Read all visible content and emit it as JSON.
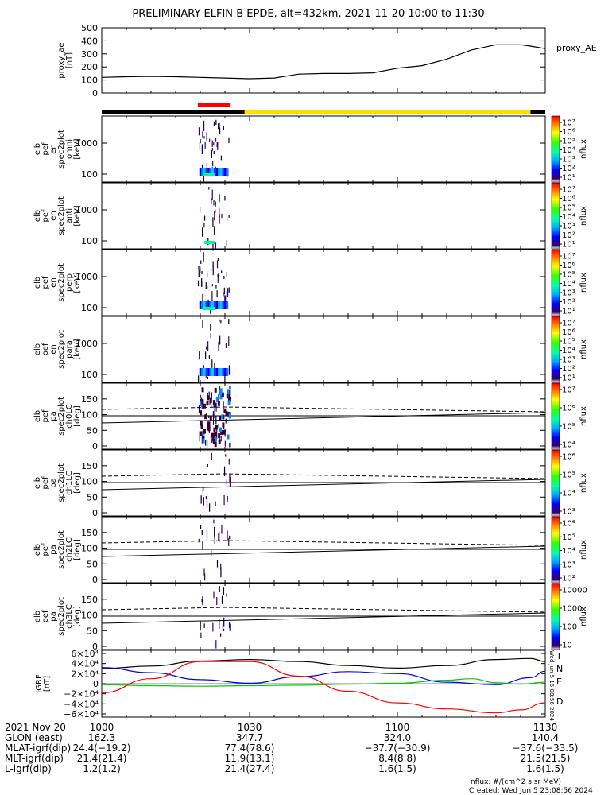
{
  "title": "PRELIMINARY ELFIN-B EPDE, alt=432km, 2021-11-20 10:00 to 11:30",
  "colors": {
    "ae": "#000000",
    "T": "#000000",
    "N": "#0000ff",
    "E": "#00cc00",
    "D": "#ff0000",
    "bar_black": "#000000",
    "bar_yellow": "#ffdd00",
    "bar_red": "#ff0000"
  },
  "chart_data": [
    {
      "type": "line",
      "panel": "proxy_ae",
      "ylabel": [
        "proxy_ae",
        "[nT]"
      ],
      "legend": "proxy_AE",
      "x_minutes": [
        0,
        5,
        10,
        15,
        20,
        25,
        30,
        35,
        40,
        45,
        50,
        55,
        60,
        65,
        70,
        75,
        80,
        85,
        87,
        90
      ],
      "y": [
        120,
        125,
        128,
        125,
        120,
        115,
        110,
        115,
        145,
        150,
        150,
        155,
        190,
        210,
        260,
        330,
        370,
        370,
        360,
        340
      ],
      "ylim": [
        0,
        500
      ],
      "yticks": [
        "500",
        "400",
        "300",
        "200",
        "100",
        "0"
      ]
    },
    {
      "type": "table",
      "panel": "status_bar",
      "segments": [
        {
          "from": 0,
          "to": 29,
          "color": "black"
        },
        {
          "from": 29,
          "to": 87,
          "color": "yellow"
        },
        {
          "from": 87,
          "to": 90,
          "color": "black"
        }
      ],
      "marker": {
        "from": 19.5,
        "to": 26,
        "color": "red"
      }
    },
    {
      "type": "heatmap",
      "panel": "omni",
      "ylabel": [
        "elb",
        "pef",
        "en",
        "spec2plot",
        "omni",
        "[keV]"
      ],
      "yticks": [
        "1000",
        "100"
      ],
      "cbar_label": "nflux",
      "cbar_ticks": [
        "10⁷",
        "10⁶",
        "10⁵",
        "10⁴",
        "10³",
        "10²",
        "10¹"
      ]
    },
    {
      "type": "heatmap",
      "panel": "anti",
      "ylabel": [
        "elb",
        "pef",
        "en",
        "spec2plot",
        "anti",
        "[keV]"
      ],
      "yticks": [
        "1000",
        "100"
      ],
      "cbar_label": "nflux",
      "cbar_ticks": [
        "10⁷",
        "10⁶",
        "10⁵",
        "10⁴",
        "10³",
        "10²",
        "10¹"
      ]
    },
    {
      "type": "heatmap",
      "panel": "perp",
      "ylabel": [
        "elb",
        "pef",
        "en",
        "spec2plot",
        "perp",
        "[keV]"
      ],
      "yticks": [
        "1000",
        "100"
      ],
      "cbar_label": "nflux",
      "cbar_ticks": [
        "10⁷",
        "10⁶",
        "10⁵",
        "10⁴",
        "10³",
        "10²",
        "10¹"
      ]
    },
    {
      "type": "heatmap",
      "panel": "para",
      "ylabel": [
        "elb",
        "pef",
        "en",
        "spec2plot",
        "para",
        "[keV]"
      ],
      "yticks": [
        "1000",
        "100"
      ],
      "cbar_label": "nflux",
      "cbar_ticks": [
        "10⁷",
        "10⁶",
        "10⁵",
        "10⁴",
        "10³",
        "10²",
        "10¹"
      ]
    },
    {
      "type": "heatmap",
      "panel": "ch0LC",
      "ylabel": [
        "elb",
        "pef",
        "pa",
        "spec2plot",
        "ch0LC",
        "[deg]"
      ],
      "yticks": [
        "150",
        "100",
        "50",
        "0"
      ],
      "cbar_label": "nflux",
      "cbar_ticks": [
        "10⁷",
        "10⁶",
        "10⁵",
        "10⁴"
      ]
    },
    {
      "type": "heatmap",
      "panel": "ch1LC",
      "ylabel": [
        "elb",
        "pef",
        "pa",
        "spec2plot",
        "ch1LC",
        "[deg]"
      ],
      "yticks": [
        "150",
        "100",
        "50",
        "0"
      ],
      "cbar_label": "nflux",
      "cbar_ticks": [
        "10⁶",
        "10⁵",
        "10⁴",
        "10³"
      ]
    },
    {
      "type": "heatmap",
      "panel": "ch2LC",
      "ylabel": [
        "elb",
        "pef",
        "pa",
        "spec2plot",
        "ch2LC",
        "[deg]"
      ],
      "yticks": [
        "150",
        "100",
        "50",
        "0"
      ],
      "cbar_label": "nflux",
      "cbar_ticks": [
        "10⁶",
        "10⁵",
        "10⁴",
        "10³",
        "10²"
      ]
    },
    {
      "type": "heatmap",
      "panel": "ch3LC",
      "ylabel": [
        "elb",
        "pef",
        "pa",
        "spec2plot",
        "ch3LC",
        "[deg]"
      ],
      "yticks": [
        "150",
        "100",
        "50",
        "0"
      ],
      "cbar_label": "nflux",
      "cbar_ticks": [
        "10000",
        "1000",
        "100",
        "10"
      ]
    },
    {
      "type": "line",
      "panel": "igrf",
      "ylabel": [
        "IGRF",
        "[nT]"
      ],
      "yticks": [
        "6×10⁴",
        "4×10⁴",
        "2×10⁴",
        "0",
        "−2×10⁴",
        "−4×10⁴",
        "−6×10⁴"
      ],
      "ylim": [
        -60000,
        60000
      ],
      "series": [
        {
          "name": "T",
          "x": [
            0,
            10,
            20,
            30,
            40,
            50,
            60,
            70,
            80,
            87,
            90
          ],
          "y": [
            30000,
            35000,
            45000,
            48000,
            44000,
            36000,
            31000,
            36000,
            48000,
            50000,
            44000
          ]
        },
        {
          "name": "N",
          "x": [
            0,
            10,
            20,
            30,
            40,
            50,
            60,
            70,
            80,
            87,
            90
          ],
          "y": [
            32000,
            22000,
            8000,
            1000,
            14000,
            24000,
            20000,
            3000,
            -2000,
            12000,
            25000
          ]
        },
        {
          "name": "E",
          "x": [
            0,
            10,
            20,
            30,
            40,
            50,
            60,
            70,
            75,
            80,
            85,
            90
          ],
          "y": [
            -2000,
            -4000,
            -5000,
            -4000,
            -3000,
            -1000,
            1000,
            7000,
            10000,
            2000,
            -1000,
            3000
          ]
        },
        {
          "name": "D",
          "x": [
            0,
            10,
            20,
            30,
            40,
            50,
            60,
            70,
            80,
            85,
            90
          ],
          "y": [
            -18000,
            10000,
            44000,
            44000,
            15000,
            -15000,
            -38000,
            -50000,
            -58000,
            -52000,
            -38000
          ]
        }
      ]
    }
  ],
  "xaxis": {
    "ticks": [
      "1000",
      "1030",
      "1100",
      "1130"
    ],
    "rows": [
      {
        "label": "2021 Nov 20",
        "values": [
          "",
          "",
          "",
          ""
        ]
      },
      {
        "label": "GLON (east)",
        "values": [
          "162.3",
          "347.7",
          "324.0",
          "140.4"
        ]
      },
      {
        "label": "MLAT-igrf(dip)",
        "values": [
          "24.4(−19.2)",
          "77.4(78.6)",
          "−37.7(−30.9)",
          "−37.6(−33.5)"
        ]
      },
      {
        "label": "MLT-igrf(dip)",
        "values": [
          "21.4(21.4)",
          "11.9(13.1)",
          "8.4(8.8)",
          "21.5(21.5)"
        ]
      },
      {
        "label": "L-igrf(dip)",
        "values": [
          "1.2(1.2)",
          "21.4(27.4)",
          "1.6(1.5)",
          "1.6(1.5)"
        ]
      }
    ]
  },
  "footer": {
    "units": "nflux: #/(cm^2 s sr MeV)",
    "created": "Created: Wed Jun  5 23:08:56 2024",
    "side_stamp": "Wed Jun  5 16:08:56 2024"
  }
}
